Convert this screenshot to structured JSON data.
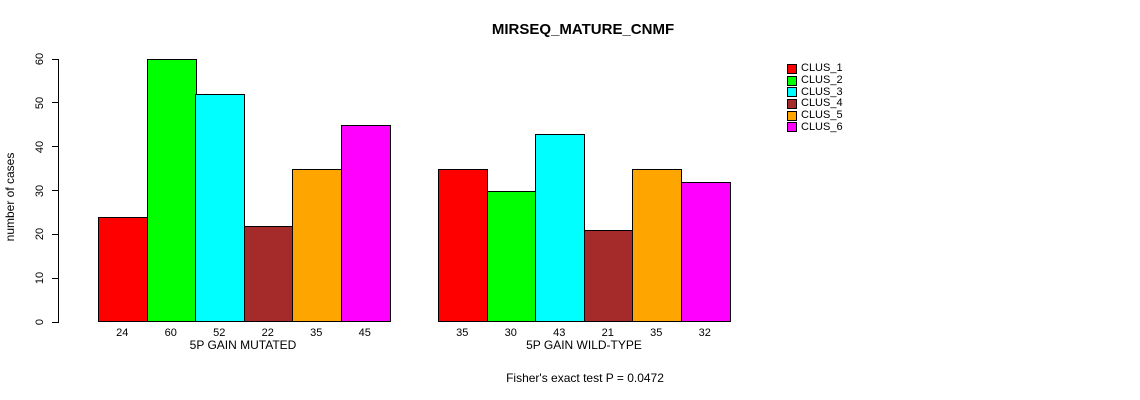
{
  "title": "MIRSEQ_MATURE_CNMF",
  "chart_data": {
    "type": "bar",
    "title": "MIRSEQ_MATURE_CNMF",
    "xlabel": "",
    "ylabel": "number of cases",
    "ylim": [
      0,
      60
    ],
    "yticks": [
      0,
      10,
      20,
      30,
      40,
      50,
      60
    ],
    "grid": false,
    "legend_position": "right",
    "bar_value_labels_shown": true,
    "categories": [
      "5P GAIN MUTATED",
      "5P GAIN WILD-TYPE"
    ],
    "series": [
      {
        "name": "CLUS_1",
        "color": "#FF0000",
        "values": [
          24,
          35
        ]
      },
      {
        "name": "CLUS_2",
        "color": "#00FF00",
        "values": [
          60,
          30
        ]
      },
      {
        "name": "CLUS_3",
        "color": "#00FFFF",
        "values": [
          52,
          43
        ]
      },
      {
        "name": "CLUS_4",
        "color": "#A52A2A",
        "values": [
          22,
          21
        ]
      },
      {
        "name": "CLUS_5",
        "color": "#FFA500",
        "values": [
          35,
          35
        ]
      },
      {
        "name": "CLUS_6",
        "color": "#FF00FF",
        "values": [
          45,
          32
        ]
      }
    ],
    "annotation": "Fisher's exact test P = 0.0472",
    "colors": {
      "axis": "#000000",
      "text": "#000000",
      "background": "#FFFFFF"
    }
  }
}
